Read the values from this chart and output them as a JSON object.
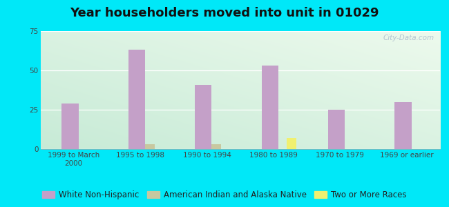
{
  "title": "Year householders moved into unit in 01029",
  "categories": [
    "1999 to March\n2000",
    "1995 to 1998",
    "1990 to 1994",
    "1980 to 1989",
    "1970 to 1979",
    "1969 or earlier"
  ],
  "series": {
    "White Non-Hispanic": [
      29,
      63,
      41,
      53,
      25,
      30
    ],
    "American Indian and Alaska Native": [
      0,
      3,
      3,
      0,
      0,
      0
    ],
    "Two or More Races": [
      0,
      0,
      0,
      7,
      0,
      0
    ]
  },
  "colors": {
    "White Non-Hispanic": "#c4a0c8",
    "American Indian and Alaska Native": "#c8c8a0",
    "Two or More Races": "#f0f070"
  },
  "bar_width": 0.18,
  "ylim": [
    0,
    75
  ],
  "yticks": [
    0,
    25,
    50,
    75
  ],
  "bg_outer": "#00e8f8",
  "bg_plot_topleft": "#ddeedd",
  "bg_plot_topright": "#eef8ee",
  "bg_plot_bottomleft": "#c8e8d8",
  "bg_plot_bottomright": "#ddf0e8",
  "watermark": "City-Data.com",
  "title_fontsize": 13,
  "tick_label_fontsize": 7.5,
  "legend_fontsize": 8.5
}
